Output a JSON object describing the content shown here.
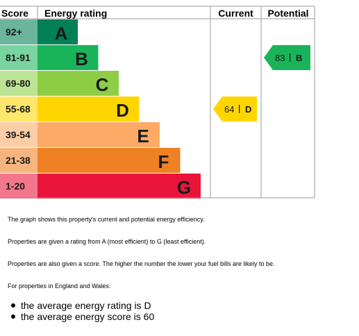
{
  "chart_data": {
    "type": "bar",
    "header": {
      "score": "Score",
      "rating": "Energy rating",
      "current": "Current",
      "potential": "Potential"
    },
    "bands": [
      {
        "letter": "A",
        "range": "92+",
        "min": 92,
        "max": 100,
        "color": "#008054"
      },
      {
        "letter": "B",
        "range": "81-91",
        "min": 81,
        "max": 91,
        "color": "#19b459"
      },
      {
        "letter": "C",
        "range": "69-80",
        "min": 69,
        "max": 80,
        "color": "#8dce46"
      },
      {
        "letter": "D",
        "range": "55-68",
        "min": 55,
        "max": 68,
        "color": "#ffd500"
      },
      {
        "letter": "E",
        "range": "39-54",
        "min": 39,
        "max": 54,
        "color": "#fcaa65"
      },
      {
        "letter": "F",
        "range": "21-38",
        "min": 21,
        "max": 38,
        "color": "#ef8023"
      },
      {
        "letter": "G",
        "range": "1-20",
        "min": 1,
        "max": 20,
        "color": "#e9153b"
      }
    ],
    "current": {
      "score": 64,
      "rating": "D",
      "color": "#ffd500"
    },
    "potential": {
      "score": 83,
      "rating": "B",
      "color": "#19b459"
    }
  },
  "notes": [
    "The graph shows this property's current and potential energy efficiency.",
    "Properties are given a rating from A (most efficient) to G (least efficient).",
    "Properties are also given a score. The higher the number the lower your fuel bills are likely to be.",
    "For properties in England and Wales:"
  ],
  "averages": [
    "the average energy rating is D",
    "the average energy score is 60"
  ]
}
